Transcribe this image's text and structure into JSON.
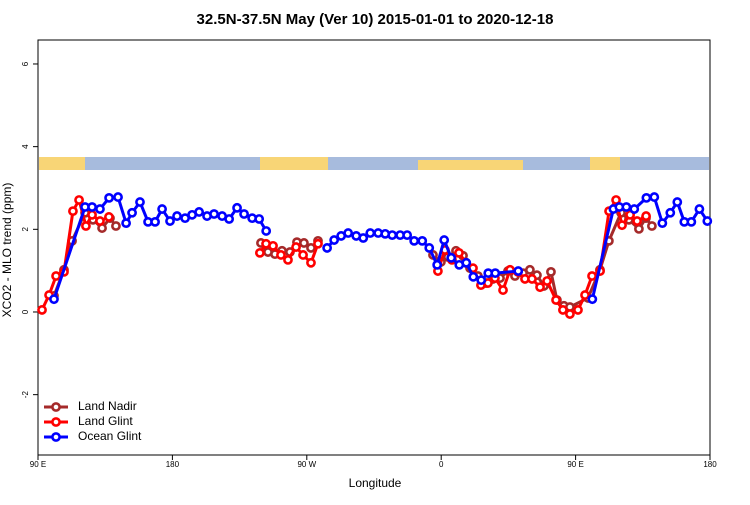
{
  "chart_data": {
    "type": "line",
    "title": "32.5N-37.5N May (Ver 10)   2015-01-01 to 2020-12-18",
    "x_label": "Longitude",
    "y_label": "XCO2 - MLO trend (ppm)",
    "xlim": [
      90,
      540
    ],
    "ylim": [
      -3.46,
      6.58
    ],
    "xticks": [
      {
        "value": 90,
        "label": "90 E"
      },
      180,
      {
        "value": 270,
        "label": "90 W"
      },
      {
        "value": 360,
        "label": "0"
      },
      {
        "value": 450,
        "label": "90 E"
      },
      {
        "value": 540,
        "label": "180"
      }
    ],
    "yticks": [
      -2,
      0,
      2,
      4,
      6
    ],
    "legend": "bottomleft",
    "series": [
      {
        "name": "Land Nadir",
        "color": "#a52a2a",
        "x": [
          100.7,
          107.4,
          112.8,
          121.5,
          126.8,
          132.9,
          138.2,
          142.2,
          null,
          239.3,
          244.0,
          248.7,
          253.4,
          258.7,
          263.4,
          268.1,
          272.8,
          277.5,
          null,
          354.5,
          359.8,
          364.5,
          369.9,
          374.6,
          379.3,
          384.6,
          390.0,
          394.7,
          399.4,
          404.7,
          409.4,
          414.8,
          419.4,
          424.1,
          428.8,
          433.5,
          437.5,
          442.2,
          446.2,
          458.3,
          466.3,
          472.3,
          480.4,
          485.7,
          492.4,
          497.1,
          501.1
        ],
        "values": [
          0.39,
          1.02,
          1.72,
          2.4,
          2.23,
          2.03,
          2.27,
          2.08,
          null,
          1.67,
          1.45,
          1.4,
          1.48,
          1.45,
          1.69,
          1.67,
          1.55,
          1.72,
          null,
          1.38,
          1.21,
          1.33,
          1.48,
          1.36,
          1.06,
          0.87,
          0.7,
          0.8,
          0.82,
          0.99,
          0.87,
          0.94,
          1.02,
          0.89,
          0.63,
          0.97,
          0.29,
          0.15,
          0.12,
          0.34,
          1.02,
          1.72,
          2.4,
          2.23,
          2.01,
          2.27,
          2.08
        ]
      },
      {
        "name": "Land Glint",
        "color": "#ff0000",
        "x": [
          92.7,
          97.4,
          102.1,
          107.4,
          113.4,
          117.5,
          122.1,
          126.2,
          131.5,
          137.5,
          null,
          238.6,
          242.7,
          247.4,
          252.7,
          257.4,
          262.8,
          267.5,
          272.8,
          277.5,
          null,
          357.8,
          362.5,
          367.2,
          371.9,
          376.6,
          381.3,
          386.6,
          391.3,
          396.0,
          401.4,
          406.1,
          411.4,
          416.1,
          420.8,
          426.2,
          430.9,
          436.9,
          441.5,
          446.2,
          451.6,
          456.3,
          461.0,
          466.4,
          472.4,
          477.1,
          481.1,
          486.5,
          491.2,
          497.2
        ],
        "values": [
          0.05,
          0.41,
          0.87,
          0.97,
          2.44,
          2.71,
          2.08,
          2.35,
          2.2,
          2.3,
          null,
          1.43,
          1.65,
          1.6,
          1.38,
          1.26,
          1.57,
          1.38,
          1.19,
          1.65,
          null,
          0.99,
          1.5,
          1.26,
          1.43,
          1.19,
          1.06,
          0.65,
          0.7,
          0.82,
          0.53,
          1.02,
          0.97,
          0.8,
          0.8,
          0.6,
          0.75,
          0.29,
          0.05,
          -0.05,
          0.05,
          0.41,
          0.87,
          0.99,
          2.44,
          2.71,
          2.1,
          2.35,
          2.2,
          2.32
        ]
      },
      {
        "name": "Ocean Glint",
        "color": "#0000ff",
        "x": [
          100.7,
          121.5,
          126.2,
          131.5,
          137.6,
          143.6,
          149.0,
          153.0,
          158.3,
          163.7,
          168.4,
          173.1,
          178.4,
          183.1,
          188.5,
          193.2,
          197.9,
          203.2,
          207.9,
          213.3,
          218.0,
          223.3,
          228.0,
          233.4,
          238.1,
          242.8,
          null,
          283.6,
          288.3,
          293.0,
          297.7,
          303.1,
          307.8,
          312.5,
          317.8,
          322.5,
          327.2,
          332.5,
          337.2,
          341.9,
          347.3,
          352.0,
          357.3,
          362.0,
          366.7,
          372.1,
          376.8,
          381.5,
          386.8,
          391.5,
          396.2,
          411.6,
          null,
          461.2,
          475.3,
          479.3,
          484.0,
          489.3,
          497.4,
          502.7,
          508.1,
          513.4,
          518.1,
          522.8,
          527.5,
          532.9,
          538.2
        ],
        "values": [
          0.31,
          2.54,
          2.54,
          2.49,
          2.76,
          2.78,
          2.15,
          2.4,
          2.66,
          2.18,
          2.18,
          2.49,
          2.2,
          2.32,
          2.27,
          2.35,
          2.42,
          2.32,
          2.37,
          2.32,
          2.25,
          2.52,
          2.37,
          2.27,
          2.25,
          1.96,
          null,
          1.55,
          1.74,
          1.84,
          1.91,
          1.84,
          1.79,
          1.91,
          1.91,
          1.89,
          1.86,
          1.86,
          1.86,
          1.72,
          1.72,
          1.55,
          1.14,
          1.74,
          1.31,
          1.14,
          1.19,
          0.85,
          0.77,
          0.94,
          0.94,
          0.99,
          null,
          0.31,
          2.49,
          2.54,
          2.54,
          2.49,
          2.76,
          2.78,
          2.15,
          2.4,
          2.66,
          2.18,
          2.18,
          2.49,
          2.2
        ]
      }
    ]
  }
}
